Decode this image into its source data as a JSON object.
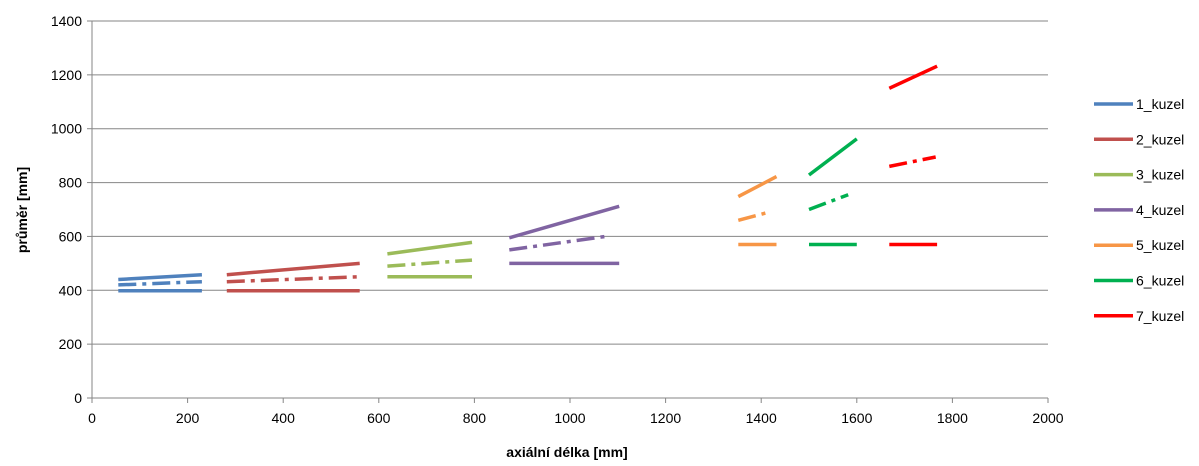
{
  "chart_data": {
    "type": "line",
    "xlabel": "axiální délka [mm]",
    "ylabel": "průměr [mm]",
    "xlim": [
      0,
      2000
    ],
    "ylim": [
      0,
      1400
    ],
    "x_ticks": [
      "0",
      "200",
      "400",
      "600",
      "800",
      "1000",
      "1200",
      "1400",
      "1600",
      "1800",
      "2000"
    ],
    "y_ticks": [
      "0",
      "200",
      "400",
      "600",
      "800",
      "1000",
      "1200",
      "1400"
    ],
    "grid": "horizontal",
    "legend_position": "right",
    "series": [
      {
        "name": "1_kuzel",
        "color": "#4f81bd",
        "lines": [
          {
            "style": "solid",
            "points": [
              [
                55,
                440
              ],
              [
                230,
                458
              ]
            ]
          },
          {
            "style": "dashdot",
            "points": [
              [
                55,
                420
              ],
              [
                230,
                432
              ]
            ]
          },
          {
            "style": "solid",
            "points": [
              [
                55,
                398
              ],
              [
                230,
                398
              ]
            ]
          }
        ]
      },
      {
        "name": "2_kuzel",
        "color": "#c0504d",
        "lines": [
          {
            "style": "solid",
            "points": [
              [
                282,
                458
              ],
              [
                560,
                500
              ]
            ]
          },
          {
            "style": "dashdot",
            "points": [
              [
                282,
                432
              ],
              [
                560,
                450
              ]
            ]
          },
          {
            "style": "solid",
            "points": [
              [
                282,
                398
              ],
              [
                560,
                398
              ]
            ]
          }
        ]
      },
      {
        "name": "3_kuzel",
        "color": "#9bbb59",
        "lines": [
          {
            "style": "solid",
            "points": [
              [
                618,
                535
              ],
              [
                795,
                578
              ]
            ]
          },
          {
            "style": "dashdot",
            "points": [
              [
                618,
                490
              ],
              [
                795,
                512
              ]
            ]
          },
          {
            "style": "solid",
            "points": [
              [
                618,
                450
              ],
              [
                795,
                450
              ]
            ]
          }
        ]
      },
      {
        "name": "4_kuzel",
        "color": "#8064a2",
        "lines": [
          {
            "style": "solid",
            "points": [
              [
                873,
                595
              ],
              [
                1103,
                712
              ]
            ]
          },
          {
            "style": "dashdot",
            "points": [
              [
                873,
                550
              ],
              [
                1075,
                600
              ]
            ]
          },
          {
            "style": "solid",
            "points": [
              [
                873,
                500
              ],
              [
                1103,
                500
              ]
            ]
          }
        ]
      },
      {
        "name": "5_kuzel",
        "color": "#f79646",
        "lines": [
          {
            "style": "solid",
            "points": [
              [
                1352,
                748
              ],
              [
                1432,
                822
              ]
            ]
          },
          {
            "style": "dashdot",
            "points": [
              [
                1352,
                660
              ],
              [
                1412,
                688
              ]
            ]
          },
          {
            "style": "solid",
            "points": [
              [
                1352,
                570
              ],
              [
                1432,
                570
              ]
            ]
          }
        ]
      },
      {
        "name": "6_kuzel",
        "color": "#00b050",
        "lines": [
          {
            "style": "solid",
            "points": [
              [
                1500,
                828
              ],
              [
                1600,
                962
              ]
            ]
          },
          {
            "style": "dashdot",
            "points": [
              [
                1500,
                700
              ],
              [
                1582,
                755
              ]
            ]
          },
          {
            "style": "solid",
            "points": [
              [
                1500,
                570
              ],
              [
                1600,
                570
              ]
            ]
          }
        ]
      },
      {
        "name": "7_kuzel",
        "color": "#ff0000",
        "lines": [
          {
            "style": "solid",
            "points": [
              [
                1668,
                1150
              ],
              [
                1768,
                1232
              ]
            ]
          },
          {
            "style": "dashdot",
            "points": [
              [
                1668,
                860
              ],
              [
                1765,
                895
              ]
            ]
          },
          {
            "style": "solid",
            "points": [
              [
                1668,
                570
              ],
              [
                1768,
                570
              ]
            ]
          }
        ]
      }
    ]
  }
}
